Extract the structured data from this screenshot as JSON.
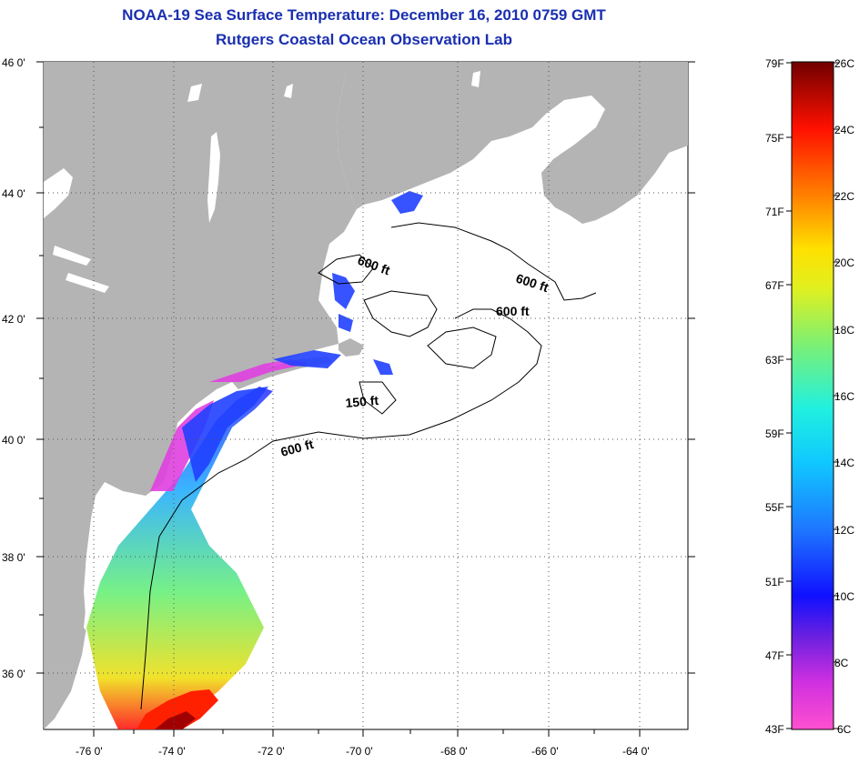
{
  "header": {
    "title": "NOAA-19 Sea Surface Temperature:  December 16, 2010 0759 GMT",
    "subtitle": "Rutgers Coastal Ocean Observation Lab"
  },
  "map": {
    "lat_labels": [
      "46 0'",
      "44 0'",
      "42 0'",
      "40 0'",
      "38 0'",
      "36 0'"
    ],
    "lon_labels": [
      "-76 0'",
      "-74 0'",
      "-72 0'",
      "-70 0'",
      "-68 0'",
      "-66 0'",
      "-64 0'"
    ],
    "land_color": "#b4b4b4",
    "contour_labels": [
      "600 ft",
      "600 ft",
      "600 ft",
      "150 ft",
      "600 ft"
    ]
  },
  "colorbar": {
    "fahrenheit_labels": [
      "79F",
      "75F",
      "71F",
      "67F",
      "63F",
      "59F",
      "55F",
      "51F",
      "47F",
      "43F"
    ],
    "celsius_labels": [
      "26C",
      "24C",
      "22C",
      "20C",
      "18C",
      "16C",
      "14C",
      "12C",
      "10C",
      "8C",
      "6C"
    ]
  }
}
